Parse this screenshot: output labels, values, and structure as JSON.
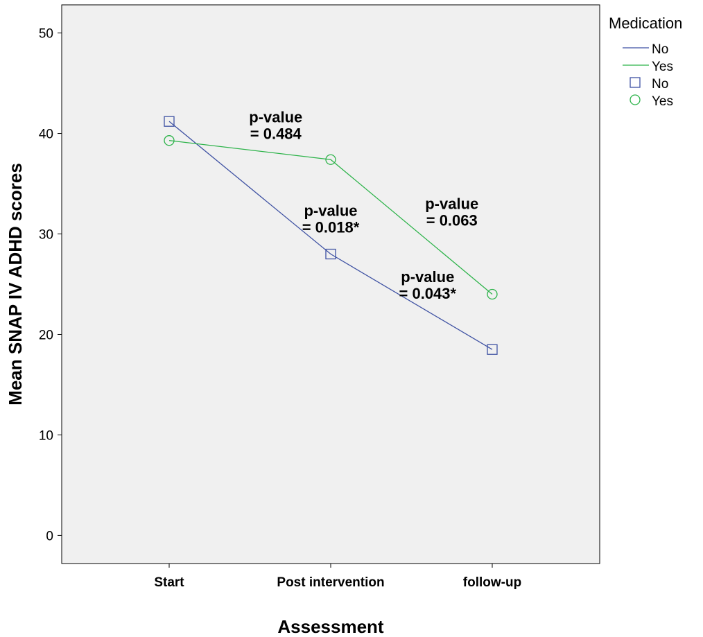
{
  "chart_data": {
    "type": "line",
    "xlabel": "Assessment",
    "ylabel": "Mean SNAP IV ADHD scores",
    "categories": [
      "Start",
      "Post intervention",
      "follow-up"
    ],
    "ylim": [
      -2.8,
      52.8
    ],
    "yticks": [
      0,
      10,
      20,
      30,
      40,
      50
    ],
    "grid": false,
    "legend": {
      "title": "Medication",
      "position": "top-right",
      "entries": [
        {
          "label": "No",
          "kind": "line",
          "series": 0
        },
        {
          "label": "Yes",
          "kind": "line",
          "series": 1
        },
        {
          "label": "No",
          "kind": "marker",
          "series": 0
        },
        {
          "label": "Yes",
          "kind": "marker",
          "series": 1
        }
      ]
    },
    "series": [
      {
        "name": "No",
        "color": "#3f52a3",
        "marker": "square",
        "values": [
          41.2,
          28.0,
          18.5
        ]
      },
      {
        "name": "Yes",
        "color": "#2db34a",
        "marker": "circle",
        "values": [
          39.3,
          37.4,
          24.0
        ]
      }
    ],
    "annotations": [
      {
        "lines": [
          "p-value",
          "= 0.484"
        ],
        "x": 0.66,
        "y": 41.1
      },
      {
        "lines": [
          "p-value",
          "= 0.018*"
        ],
        "x": 1.0,
        "y": 31.8
      },
      {
        "lines": [
          "p-value",
          "= 0.063"
        ],
        "x": 1.75,
        "y": 32.5
      },
      {
        "lines": [
          "p-value",
          "= 0.043*"
        ],
        "x": 1.6,
        "y": 25.2
      }
    ],
    "plot_background": "#f0f0f0"
  }
}
